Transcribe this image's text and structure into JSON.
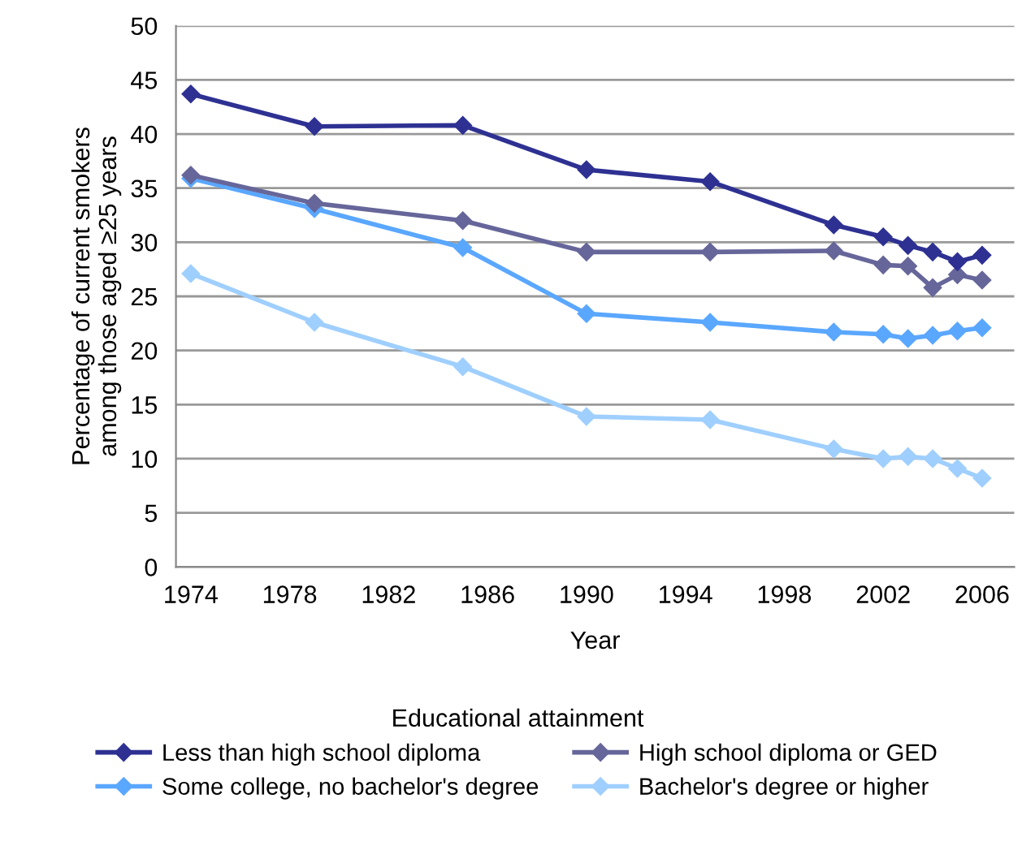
{
  "chart_data": {
    "type": "line",
    "xlabel": "Year",
    "ylabel": "Percentage of current smokers\namong those aged ≥25 years",
    "legend_title": "Educational attainment",
    "legend": "bottom",
    "grid": "y",
    "marker": "diamond",
    "line_style": "solid",
    "x": [
      1974,
      1979,
      1985,
      1990,
      1995,
      2000,
      2002,
      2003,
      2004,
      2005,
      2006
    ],
    "xlim": [
      1973.4,
      2007.3
    ],
    "xticks": [
      1974,
      1978,
      1982,
      1986,
      1990,
      1994,
      1998,
      2002,
      2006
    ],
    "ylim": [
      0,
      50
    ],
    "yticks": [
      0,
      5,
      10,
      15,
      20,
      25,
      30,
      35,
      40,
      45,
      50
    ],
    "series": [
      {
        "name": "Less than high school diploma",
        "color": "#2e3192",
        "values": [
          43.7,
          40.7,
          40.8,
          36.7,
          35.6,
          31.6,
          30.5,
          29.7,
          29.1,
          28.2,
          28.8
        ]
      },
      {
        "name": "High school diploma or GED",
        "color": "#66669a",
        "values": [
          36.2,
          33.6,
          32.0,
          29.1,
          29.1,
          29.2,
          27.9,
          27.8,
          25.8,
          27.0,
          26.5
        ]
      },
      {
        "name": "Some college, no bachelor's degree",
        "color": "#5aa7ff",
        "values": [
          35.9,
          33.1,
          29.5,
          23.4,
          22.6,
          21.7,
          21.5,
          21.1,
          21.4,
          21.8,
          22.1
        ]
      },
      {
        "name": "Bachelor's degree or higher",
        "color": "#9fcfff",
        "values": [
          27.1,
          22.6,
          18.5,
          13.9,
          13.6,
          10.9,
          10.0,
          10.2,
          10.0,
          9.1,
          8.2
        ]
      }
    ]
  }
}
